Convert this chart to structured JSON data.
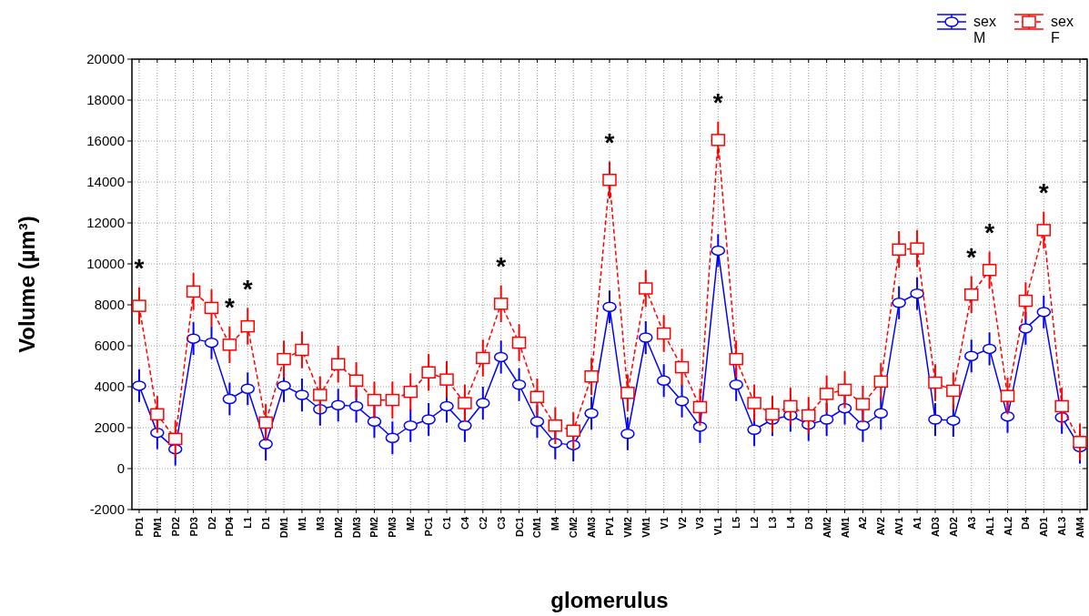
{
  "chart_data": {
    "type": "line",
    "xlabel": "glomerulus",
    "ylabel": "Volume (µm³)",
    "categories": [
      "PD1",
      "PM1",
      "PD2",
      "PD3",
      "D2",
      "PD4",
      "L1",
      "D1",
      "DM1",
      "M1",
      "M3",
      "DM2",
      "DM3",
      "PM2",
      "PM3",
      "M2",
      "PC1",
      "C1",
      "C4",
      "C2",
      "C3",
      "DC1",
      "CM1",
      "M4",
      "CM2",
      "AM3",
      "PV1",
      "VM2",
      "VM1",
      "V1",
      "V2",
      "V3",
      "VL1",
      "L5",
      "L2",
      "L3",
      "L4",
      "D3",
      "AM2",
      "AM1",
      "A2",
      "AV2",
      "AV1",
      "A1",
      "AD3",
      "AD2",
      "A3",
      "AL1",
      "AL2",
      "D4",
      "AD1",
      "AL3",
      "AM4"
    ],
    "series": [
      {
        "name": "sex M",
        "color": "#0000ff",
        "marker": "circle",
        "line_style": "solid",
        "values": [
          4050,
          1750,
          950,
          6350,
          6150,
          3400,
          3900,
          1200,
          4050,
          3600,
          2900,
          3100,
          3050,
          2300,
          1500,
          2100,
          2400,
          3050,
          2100,
          3200,
          5450,
          4100,
          2300,
          1250,
          1150,
          2700,
          7900,
          1700,
          6400,
          4300,
          3300,
          2050,
          10650,
          4100,
          1900,
          2400,
          2600,
          2150,
          2400,
          2950,
          2100,
          2700,
          8100,
          8550,
          2400,
          2350,
          5500,
          5850,
          2550,
          6850,
          7650,
          2500,
          1050
        ],
        "errors": [
          800,
          800,
          800,
          800,
          800,
          800,
          800,
          800,
          800,
          800,
          800,
          800,
          800,
          800,
          800,
          800,
          800,
          800,
          800,
          800,
          800,
          800,
          800,
          800,
          800,
          800,
          800,
          800,
          800,
          800,
          800,
          800,
          800,
          800,
          800,
          800,
          800,
          800,
          800,
          800,
          800,
          800,
          800,
          800,
          800,
          800,
          800,
          800,
          800,
          800,
          800,
          800,
          800
        ]
      },
      {
        "name": "sex F",
        "color": "#ff0000",
        "marker": "square",
        "line_style": "dashed",
        "values": [
          7950,
          2650,
          1450,
          8650,
          7850,
          6050,
          6950,
          2250,
          5350,
          5800,
          3600,
          5100,
          4300,
          3350,
          3350,
          3750,
          4700,
          4350,
          3200,
          5400,
          8050,
          6150,
          3500,
          2100,
          1850,
          4500,
          14100,
          3700,
          8800,
          6600,
          4950,
          3000,
          16050,
          5350,
          3200,
          2650,
          3050,
          2600,
          3650,
          3850,
          3150,
          4250,
          10700,
          10750,
          4200,
          3800,
          8500,
          9700,
          3550,
          8200,
          11650,
          3050,
          1300
        ],
        "errors": [
          900,
          900,
          900,
          900,
          900,
          900,
          900,
          900,
          900,
          900,
          900,
          900,
          900,
          900,
          900,
          900,
          900,
          900,
          900,
          900,
          900,
          900,
          900,
          900,
          900,
          900,
          900,
          900,
          900,
          900,
          900,
          900,
          900,
          900,
          900,
          900,
          900,
          900,
          900,
          900,
          900,
          900,
          900,
          900,
          900,
          900,
          900,
          900,
          900,
          900,
          900,
          900,
          900
        ]
      }
    ],
    "ylim": [
      -2000,
      20000
    ],
    "yticks": [
      -2000,
      0,
      2000,
      4000,
      6000,
      8000,
      10000,
      12000,
      14000,
      16000,
      18000,
      20000
    ],
    "grid": true,
    "legend": "top right",
    "annotations": [
      {
        "text": "*",
        "x": "PD1",
        "y": 7950
      },
      {
        "text": "*",
        "x": "PD4",
        "y": 6050
      },
      {
        "text": "*",
        "x": "L1",
        "y": 6950
      },
      {
        "text": "*",
        "x": "C3",
        "y": 8050
      },
      {
        "text": "*",
        "x": "PV1",
        "y": 14100
      },
      {
        "text": "*",
        "x": "VL1",
        "y": 16050
      },
      {
        "text": "*",
        "x": "A3",
        "y": 8500
      },
      {
        "text": "*",
        "x": "AL1",
        "y": 9700
      },
      {
        "text": "*",
        "x": "AD1",
        "y": 11650
      }
    ]
  }
}
